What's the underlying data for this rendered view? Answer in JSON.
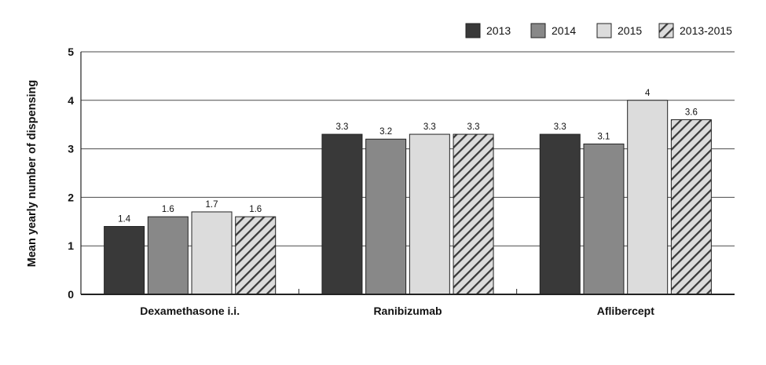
{
  "chart_data": {
    "type": "bar",
    "title": "",
    "xlabel": "",
    "ylabel": "Mean yearly number of dispensing",
    "ylim": [
      0,
      5
    ],
    "yticks": [
      0,
      1,
      2,
      3,
      4,
      5
    ],
    "grid": true,
    "legend_position": "top-right",
    "categories": [
      "Dexamethasone i.i.",
      "Ranibizumab",
      "Aflibercept"
    ],
    "series": [
      {
        "name": "2013",
        "values": [
          1.4,
          3.3,
          3.3
        ],
        "color": "#393939",
        "pattern": "solid"
      },
      {
        "name": "2014",
        "values": [
          1.6,
          3.2,
          3.1
        ],
        "color": "#888888",
        "pattern": "solid"
      },
      {
        "name": "2015",
        "values": [
          1.7,
          3.3,
          4
        ],
        "color": "#dcdcdc",
        "pattern": "solid"
      },
      {
        "name": "2013-2015",
        "values": [
          1.6,
          3.3,
          3.6
        ],
        "color": "#dcdcdc",
        "pattern": "diagonal-hatch"
      }
    ],
    "data_labels": [
      [
        "1.4",
        "1.6",
        "1.7",
        "1.6"
      ],
      [
        "3.3",
        "3.2",
        "3.3",
        "3.3"
      ],
      [
        "3.3",
        "3.1",
        "4",
        "3.6"
      ]
    ]
  }
}
